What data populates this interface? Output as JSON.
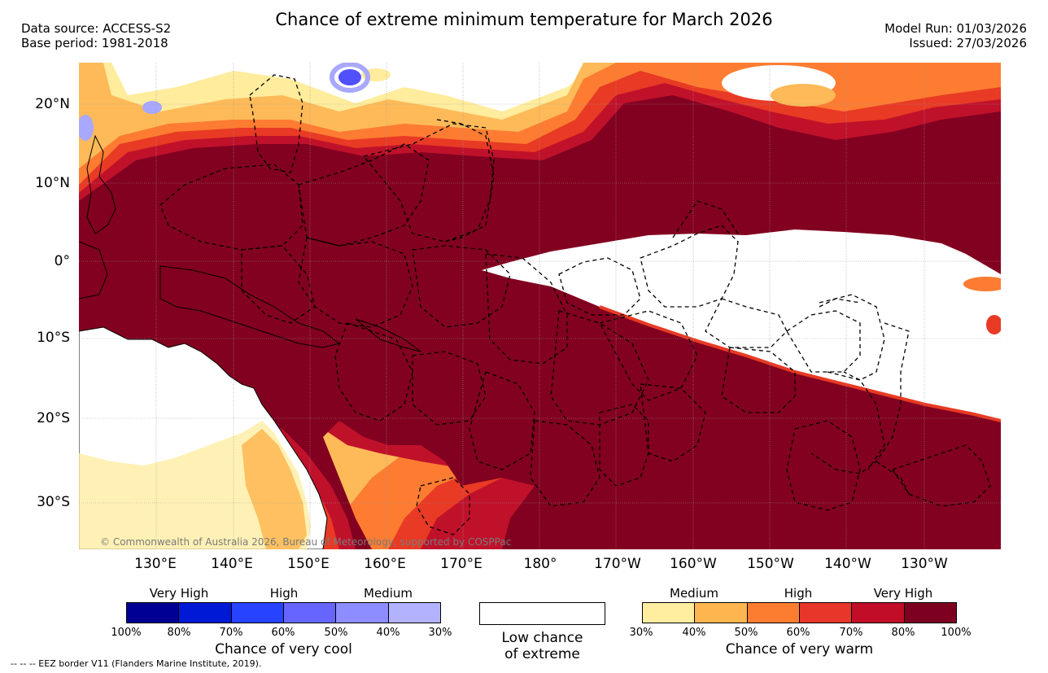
{
  "header": {
    "title": "Chance of extreme minimum temperature for March 2026",
    "data_source": "Data source: ACCESS-S2",
    "base_period": "Base period: 1981-2018",
    "model_run": "Model Run: 01/03/2026",
    "issued": "Issued: 27/03/2026"
  },
  "map": {
    "copyright": "© Commonwealth of Australia 2026, Bureau of Meteorology, supported by COSPPac",
    "lat_labels": [
      "20°N",
      "10°N",
      "0°",
      "10°S",
      "20°S",
      "30°S"
    ],
    "lon_labels": [
      "130°E",
      "140°E",
      "150°E",
      "160°E",
      "170°E",
      "180°",
      "170°W",
      "160°W",
      "150°W",
      "140°W",
      "130°W"
    ],
    "colors": {
      "white": "#ffffff",
      "land_outline": "#000000",
      "very_high_warm": "#820020",
      "high_warm_80": "#c0112b",
      "high_warm_70": "#e83a24",
      "medium_warm_60": "#fd7c32",
      "medium_warm_50": "#feba58",
      "low_warm_40": "#ffec9c",
      "cool_light": "#a8a8fe",
      "cool_mid": "#5050fe"
    }
  },
  "legend": {
    "cool": {
      "categories": [
        "Very High",
        "High",
        "Medium"
      ],
      "ticks": [
        "100%",
        "80%",
        "70%",
        "60%",
        "50%",
        "40%",
        "30%"
      ],
      "colors": [
        "#000094",
        "#0019d6",
        "#2843ff",
        "#6666ff",
        "#8d8dff",
        "#b2b2ff"
      ],
      "title": "Chance of very cool"
    },
    "low": {
      "line1": "Low chance",
      "line2": "of extreme"
    },
    "warm": {
      "categories": [
        "Medium",
        "High",
        "Very High"
      ],
      "ticks": [
        "30%",
        "40%",
        "50%",
        "60%",
        "70%",
        "80%",
        "100%"
      ],
      "colors": [
        "#ffeda0",
        "#feb54f",
        "#fd7d30",
        "#e8362a",
        "#c10d28",
        "#7d0020"
      ],
      "title": "Chance of very warm"
    }
  },
  "footer": {
    "eez_note": "-- -- -- EEZ border V11 (Flanders Marine Institute, 2019)."
  }
}
